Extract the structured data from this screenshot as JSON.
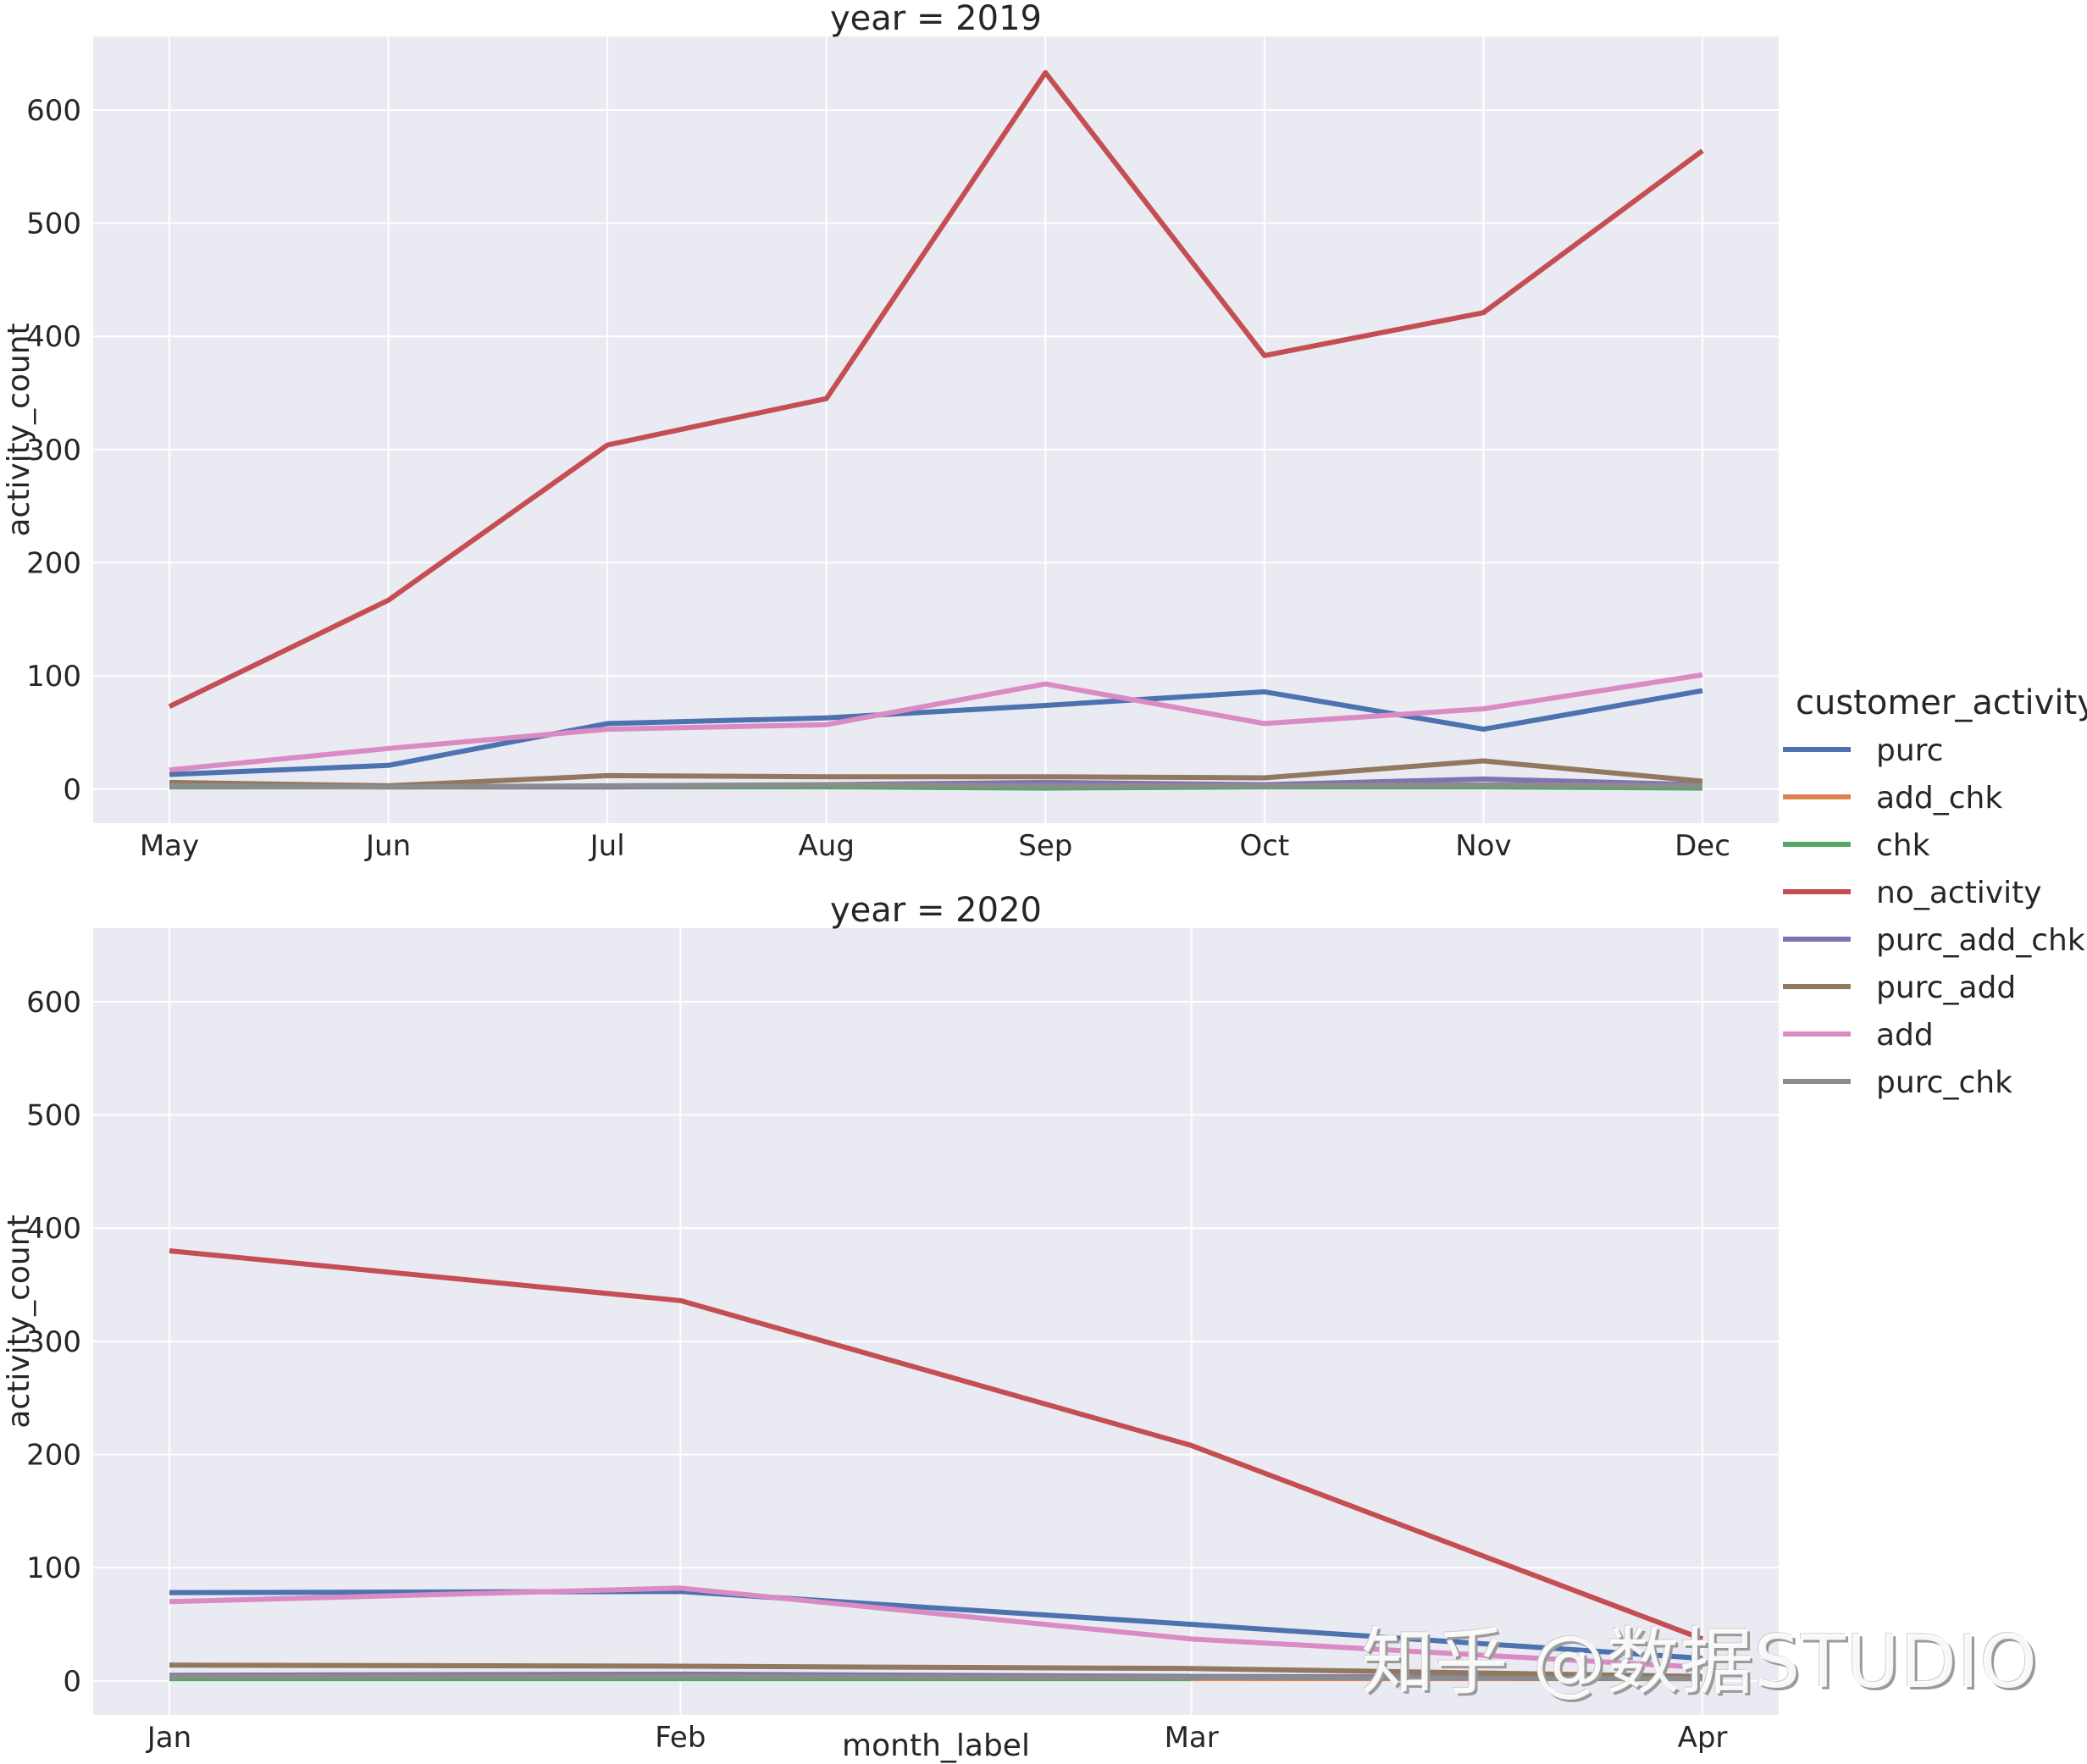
{
  "chart_data": {
    "type": "line",
    "xlabel": "month_label",
    "ylabel": "activity_count",
    "ylim": [
      -30,
      665
    ],
    "yticks": [
      0,
      100,
      200,
      300,
      400,
      500,
      600
    ],
    "grid": true,
    "legend": {
      "title": "customer_activity",
      "placement": "right"
    },
    "series_styles": [
      {
        "name": "purc",
        "color": "#4c72b0"
      },
      {
        "name": "add_chk",
        "color": "#dd8452"
      },
      {
        "name": "chk",
        "color": "#55a868"
      },
      {
        "name": "no_activity",
        "color": "#c44e52"
      },
      {
        "name": "purc_add_chk",
        "color": "#8172b3"
      },
      {
        "name": "purc_add",
        "color": "#937860"
      },
      {
        "name": "add",
        "color": "#da8bc3"
      },
      {
        "name": "purc_chk",
        "color": "#8c8c8c"
      }
    ],
    "panels": [
      {
        "title": "year = 2019",
        "categories": [
          "May",
          "Jun",
          "Jul",
          "Aug",
          "Sep",
          "Oct",
          "Nov",
          "Dec"
        ],
        "series": [
          {
            "name": "purc",
            "values": [
              13,
              21,
              58,
              63,
              74,
              86,
              53,
              87
            ]
          },
          {
            "name": "add_chk",
            "values": [
              null,
              null,
              null,
              null,
              null,
              null,
              null,
              null
            ]
          },
          {
            "name": "chk",
            "values": [
              2,
              2,
              2,
              2,
              1,
              2,
              2,
              1
            ]
          },
          {
            "name": "no_activity",
            "values": [
              73,
              167,
              304,
              345,
              633,
              383,
              421,
              564
            ]
          },
          {
            "name": "purc_add_chk",
            "values": [
              3,
              2,
              2,
              4,
              6,
              4,
              9,
              4
            ]
          },
          {
            "name": "purc_add",
            "values": [
              6,
              3,
              12,
              11,
              11,
              10,
              25,
              7
            ]
          },
          {
            "name": "add",
            "values": [
              17,
              36,
              53,
              57,
              93,
              58,
              71,
              101
            ]
          },
          {
            "name": "purc_chk",
            "values": [
              3,
              2,
              3,
              4,
              3,
              3,
              4,
              3
            ]
          }
        ]
      },
      {
        "title": "year = 2020",
        "categories": [
          "Jan",
          "Feb",
          "Mar",
          "Apr"
        ],
        "series": [
          {
            "name": "purc",
            "values": [
              78,
              79,
              50,
              20
            ]
          },
          {
            "name": "add_chk",
            "values": [
              null,
              null,
              2,
              2
            ]
          },
          {
            "name": "chk",
            "values": [
              2,
              2,
              2,
              null
            ]
          },
          {
            "name": "no_activity",
            "values": [
              380,
              336,
              208,
              37
            ]
          },
          {
            "name": "purc_add_chk",
            "values": [
              5,
              6,
              4,
              3
            ]
          },
          {
            "name": "purc_add",
            "values": [
              14,
              13,
              11,
              4
            ]
          },
          {
            "name": "add",
            "values": [
              70,
              82,
              37,
              12
            ]
          },
          {
            "name": "purc_chk",
            "values": [
              4,
              4,
              3,
              2
            ]
          }
        ]
      }
    ]
  },
  "watermark": "知乎 @数据STUDIO"
}
